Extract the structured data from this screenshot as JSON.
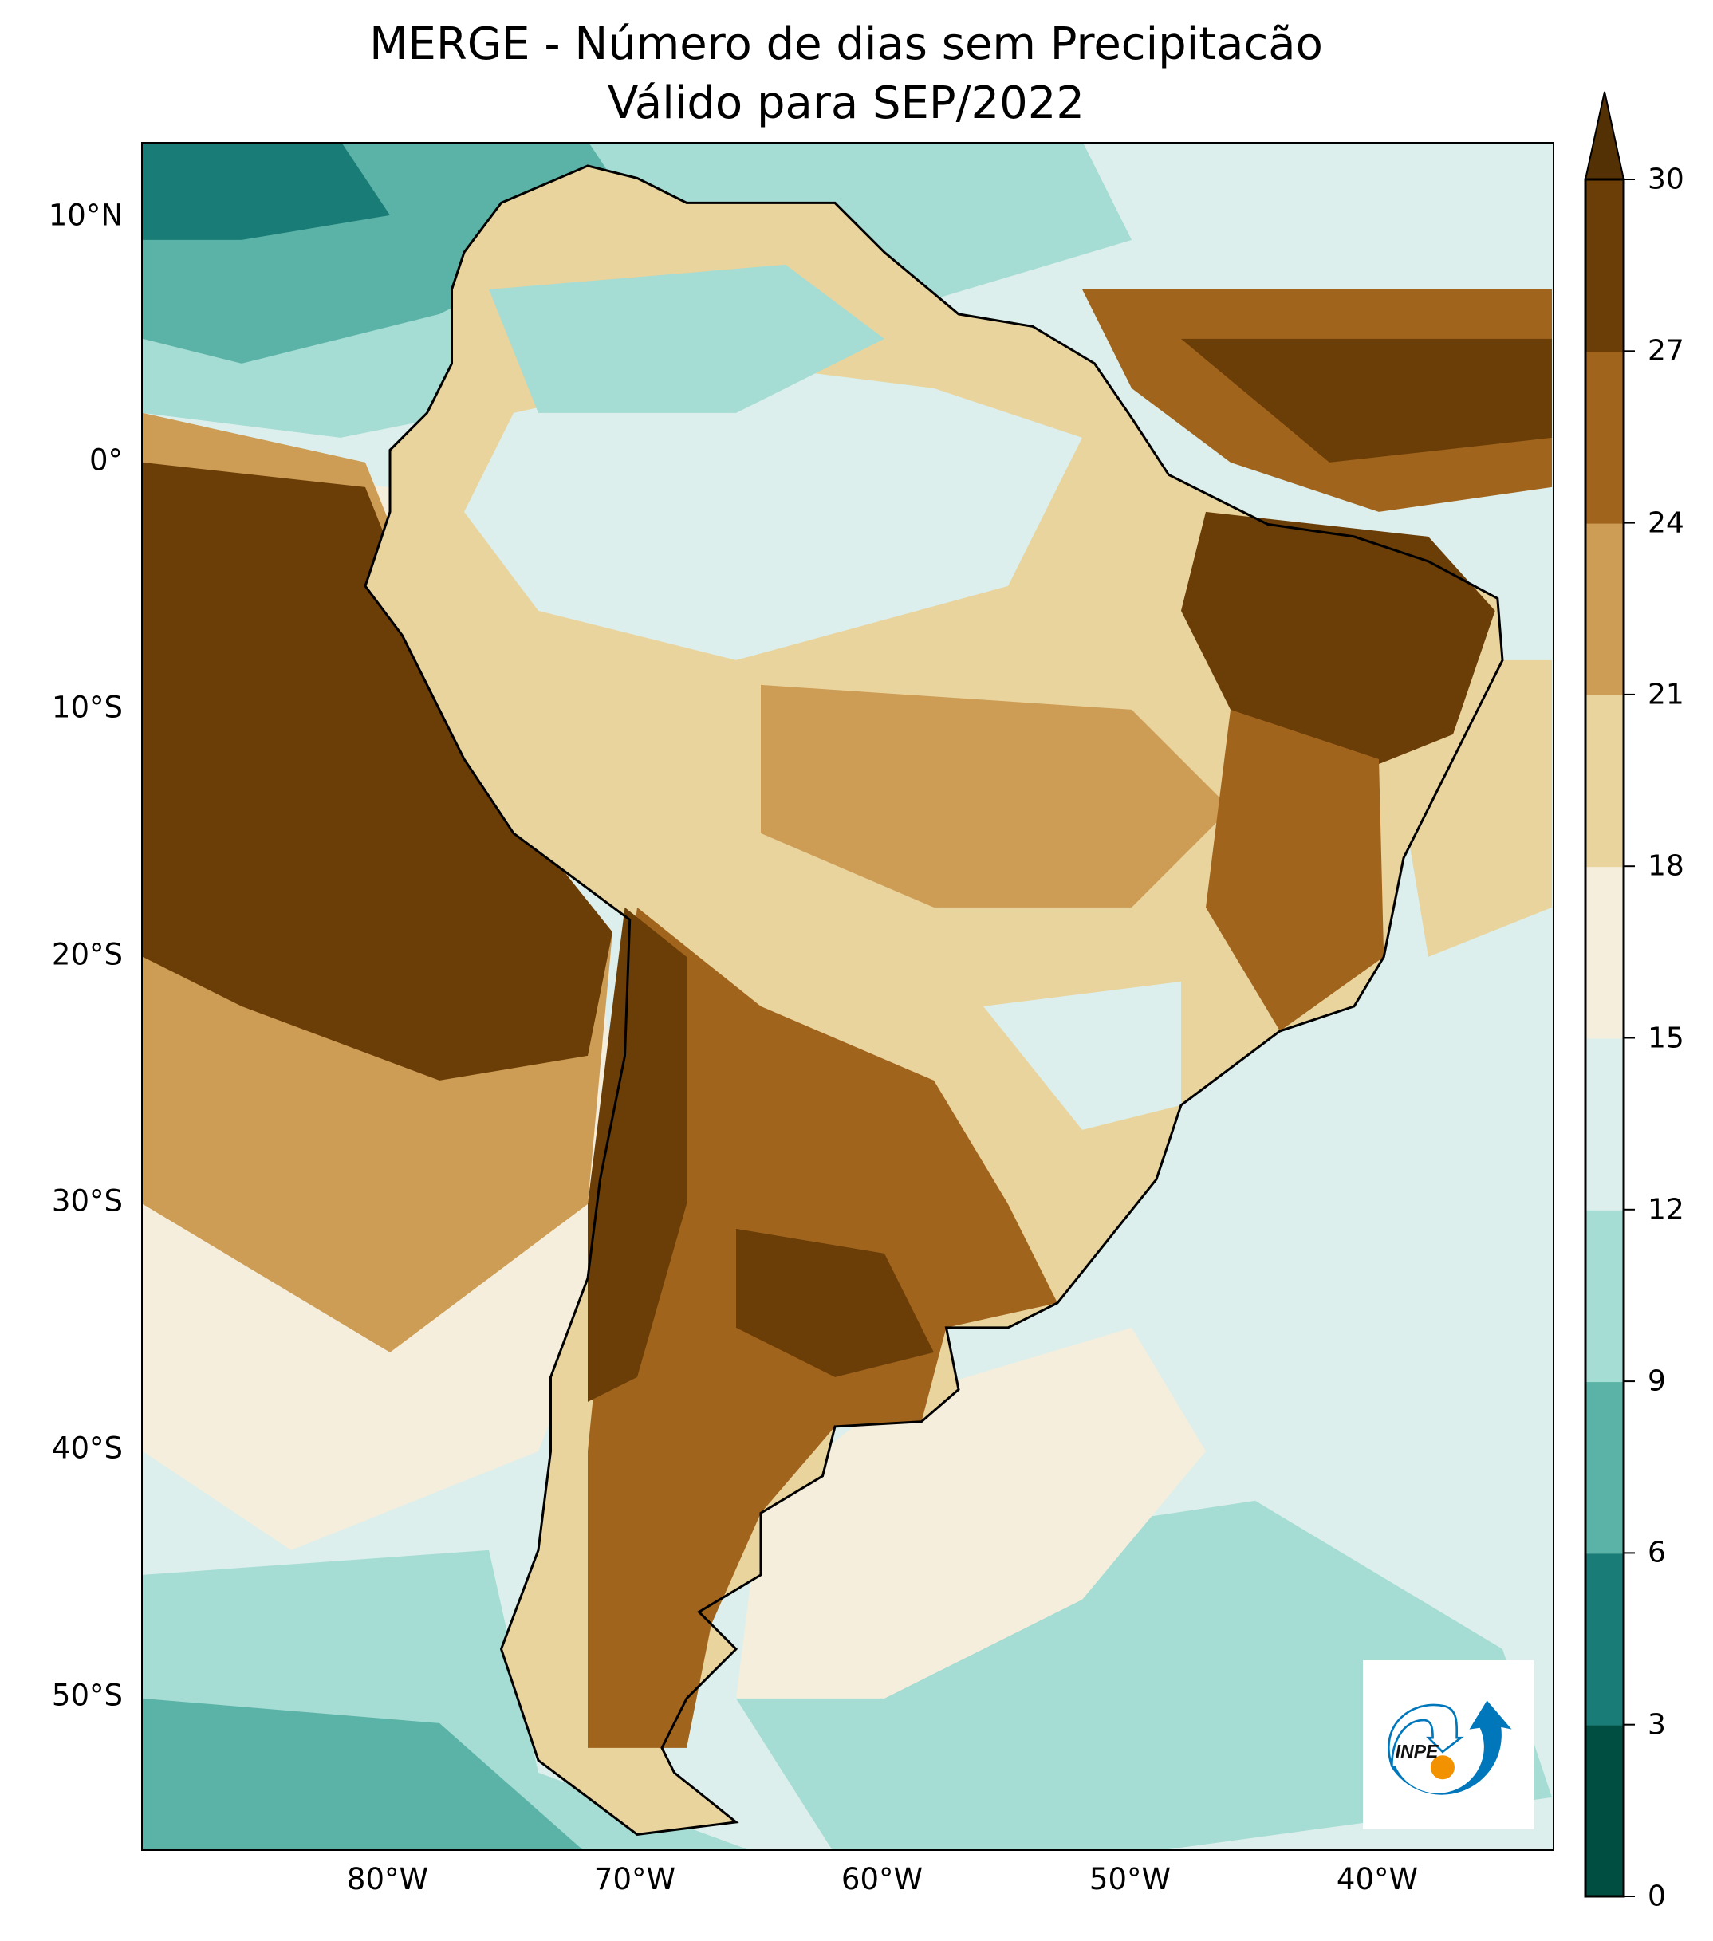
{
  "title": {
    "line1": "MERGE - Número de dias sem Precipitacão",
    "line2": "Válido para SEP/2022"
  },
  "lat_labels": [
    "10°N",
    "0°",
    "10°S",
    "20°S",
    "30°S",
    "40°S",
    "50°S"
  ],
  "lon_labels": [
    "80°W",
    "70°W",
    "60°W",
    "50°W",
    "40°W"
  ],
  "colorbar": {
    "ticks": [
      "0",
      "3",
      "6",
      "9",
      "12",
      "15",
      "18",
      "21",
      "24",
      "27",
      "30"
    ],
    "colors": [
      "#004d42",
      "#1a7c76",
      "#5bb3a8",
      "#a5dcd3",
      "#dcefec",
      "#f5eedc",
      "#e9d49e",
      "#cd9c55",
      "#a1641d",
      "#6b3d07"
    ],
    "extend_color": "#543005"
  },
  "logo": {
    "text": "INPE",
    "colors": {
      "blue": "#0077bb",
      "orange": "#f39200"
    }
  }
}
